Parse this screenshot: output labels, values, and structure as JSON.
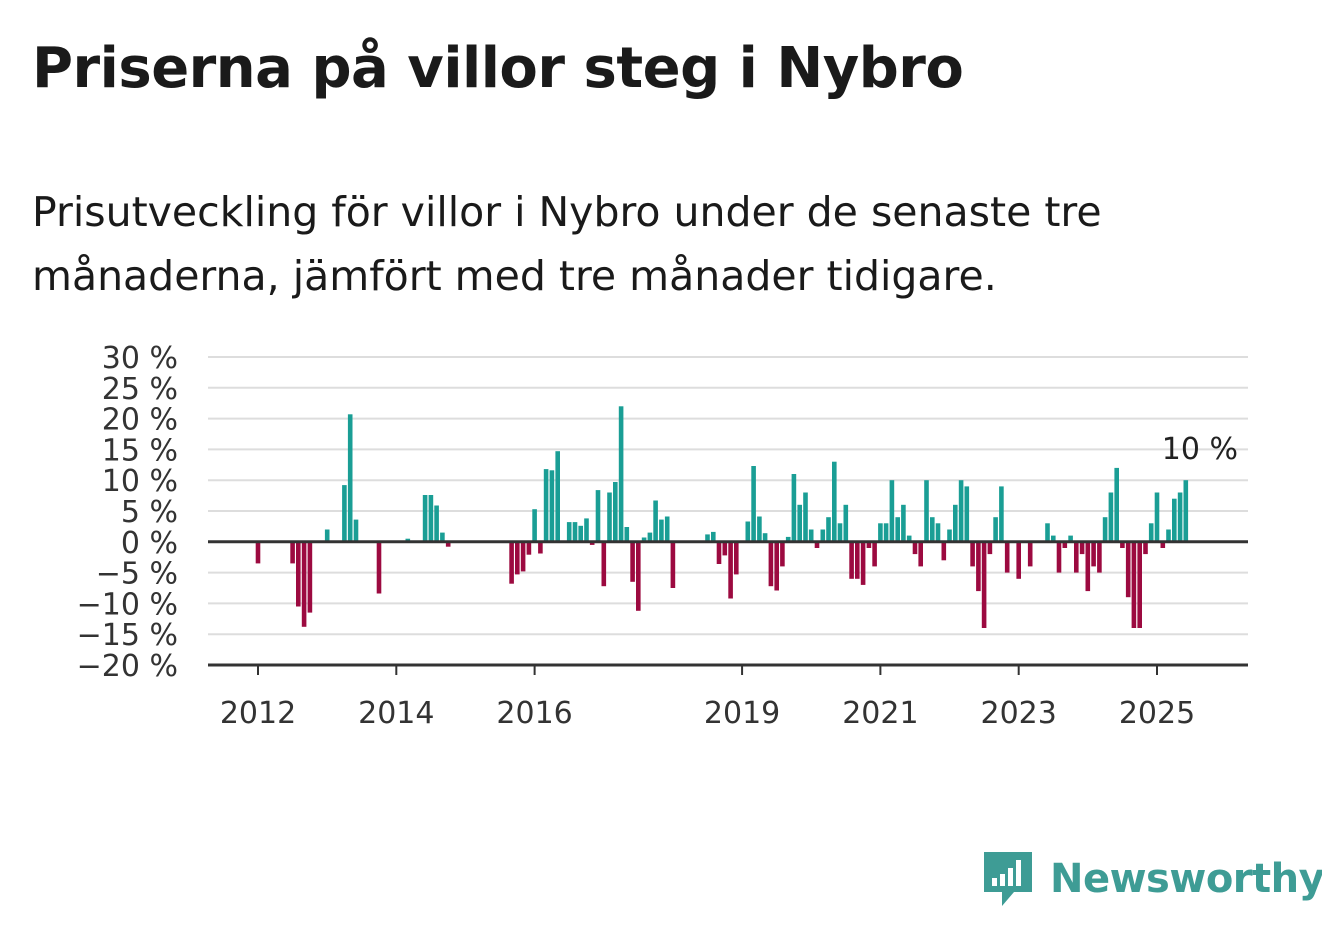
{
  "title": "Priserna på villor steg i Nybro",
  "subtitle": "Prisutveckling för villor i Nybro under de senaste tre månaderna, jämfört med tre månader tidigare.",
  "brand": {
    "name": "Newsworthy",
    "icon": "newsworthy-bar-chart-logo-icon"
  },
  "colors": {
    "positive": "#1a9e95",
    "negative": "#9c0a40",
    "grid": "#dddddd",
    "axis": "#333333",
    "text": "#333333"
  },
  "chart_data": {
    "type": "bar",
    "title": "Priserna på villor steg i Nybro",
    "subtitle": "Prisutveckling för villor i Nybro under de senaste tre månaderna, jämfört med tre månader tidigare.",
    "xlabel": "",
    "ylabel": "",
    "ylim": [
      -20,
      30
    ],
    "y_ticks": [
      30,
      25,
      20,
      15,
      10,
      5,
      0,
      -5,
      -10,
      -15,
      -20
    ],
    "y_tick_labels": [
      "30 %",
      "25 %",
      "20 %",
      "15 %",
      "10 %",
      "5 %",
      "0 %",
      "−5 %",
      "−10 %",
      "−15 %",
      "−20 %"
    ],
    "x_ticks": [
      {
        "label": "2012",
        "date": "2012-01"
      },
      {
        "label": "2014",
        "date": "2014-01"
      },
      {
        "label": "2016",
        "date": "2016-01"
      },
      {
        "label": "2019",
        "date": "2019-01"
      },
      {
        "label": "2021",
        "date": "2021-01"
      },
      {
        "label": "2023",
        "date": "2023-01"
      },
      {
        "label": "2025",
        "date": "2025-01"
      }
    ],
    "grid": true,
    "annotation": {
      "label": "10 %",
      "date": "2025-08",
      "value": 10
    },
    "series": [
      {
        "values": [
          {
            "date": "2012-01",
            "value": -3.5
          },
          {
            "date": "2012-07",
            "value": -3.5
          },
          {
            "date": "2012-08",
            "value": -10.5
          },
          {
            "date": "2012-09",
            "value": -13.8
          },
          {
            "date": "2012-10",
            "value": -11.5
          },
          {
            "date": "2013-01",
            "value": 2
          },
          {
            "date": "2013-04",
            "value": 9.2
          },
          {
            "date": "2013-05",
            "value": 20.7
          },
          {
            "date": "2013-06",
            "value": 3.6
          },
          {
            "date": "2013-10",
            "value": -8.4
          },
          {
            "date": "2014-03",
            "value": 0.5
          },
          {
            "date": "2014-06",
            "value": 7.6
          },
          {
            "date": "2014-07",
            "value": 7.6
          },
          {
            "date": "2014-08",
            "value": 5.9
          },
          {
            "date": "2014-09",
            "value": 1.5
          },
          {
            "date": "2014-10",
            "value": -0.8
          },
          {
            "date": "2015-09",
            "value": -6.8
          },
          {
            "date": "2015-10",
            "value": -5.3
          },
          {
            "date": "2015-11",
            "value": -4.8
          },
          {
            "date": "2015-12",
            "value": -2.1
          },
          {
            "date": "2016-01",
            "value": 5.3
          },
          {
            "date": "2016-02",
            "value": -1.9
          },
          {
            "date": "2016-03",
            "value": 11.8
          },
          {
            "date": "2016-04",
            "value": 11.6
          },
          {
            "date": "2016-05",
            "value": 14.7
          },
          {
            "date": "2016-07",
            "value": 3.2
          },
          {
            "date": "2016-08",
            "value": 3.2
          },
          {
            "date": "2016-09",
            "value": 2.6
          },
          {
            "date": "2016-10",
            "value": 3.8
          },
          {
            "date": "2016-11",
            "value": -0.5
          },
          {
            "date": "2016-12",
            "value": 8.4
          },
          {
            "date": "2017-01",
            "value": -7.2
          },
          {
            "date": "2017-02",
            "value": 8.0
          },
          {
            "date": "2017-03",
            "value": 9.7
          },
          {
            "date": "2017-04",
            "value": 22.0
          },
          {
            "date": "2017-05",
            "value": 2.4
          },
          {
            "date": "2017-06",
            "value": -6.5
          },
          {
            "date": "2017-07",
            "value": -11.2
          },
          {
            "date": "2017-08",
            "value": 0.7
          },
          {
            "date": "2017-09",
            "value": 1.5
          },
          {
            "date": "2017-10",
            "value": 6.7
          },
          {
            "date": "2017-11",
            "value": 3.6
          },
          {
            "date": "2017-12",
            "value": 4.1
          },
          {
            "date": "2018-01",
            "value": -7.5
          },
          {
            "date": "2018-07",
            "value": 1.2
          },
          {
            "date": "2018-08",
            "value": 1.6
          },
          {
            "date": "2018-09",
            "value": -3.6
          },
          {
            "date": "2018-10",
            "value": -2.2
          },
          {
            "date": "2018-11",
            "value": -9.2
          },
          {
            "date": "2018-12",
            "value": -5.3
          },
          {
            "date": "2019-02",
            "value": 3.3
          },
          {
            "date": "2019-03",
            "value": 12.3
          },
          {
            "date": "2019-04",
            "value": 4.1
          },
          {
            "date": "2019-05",
            "value": 1.4
          },
          {
            "date": "2019-06",
            "value": -7.2
          },
          {
            "date": "2019-07",
            "value": -7.9
          },
          {
            "date": "2019-08",
            "value": -4.0
          },
          {
            "date": "2019-09",
            "value": 0.8
          },
          {
            "date": "2019-10",
            "value": 11.0
          },
          {
            "date": "2019-11",
            "value": 6.0
          },
          {
            "date": "2019-12",
            "value": 8.0
          },
          {
            "date": "2020-01",
            "value": 2.0
          },
          {
            "date": "2020-02",
            "value": -1.0
          },
          {
            "date": "2020-03",
            "value": 2.0
          },
          {
            "date": "2020-04",
            "value": 4.0
          },
          {
            "date": "2020-05",
            "value": 13.0
          },
          {
            "date": "2020-06",
            "value": 3.0
          },
          {
            "date": "2020-07",
            "value": 6.0
          },
          {
            "date": "2020-08",
            "value": -6.0
          },
          {
            "date": "2020-09",
            "value": -6.0
          },
          {
            "date": "2020-10",
            "value": -7.0
          },
          {
            "date": "2020-11",
            "value": -1.0
          },
          {
            "date": "2020-12",
            "value": -4.0
          },
          {
            "date": "2021-01",
            "value": 3.0
          },
          {
            "date": "2021-02",
            "value": 3.0
          },
          {
            "date": "2021-03",
            "value": 10.0
          },
          {
            "date": "2021-04",
            "value": 4.0
          },
          {
            "date": "2021-05",
            "value": 6.0
          },
          {
            "date": "2021-06",
            "value": 1.0
          },
          {
            "date": "2021-07",
            "value": -2.0
          },
          {
            "date": "2021-08",
            "value": -4.0
          },
          {
            "date": "2021-09",
            "value": 10.0
          },
          {
            "date": "2021-10",
            "value": 4.0
          },
          {
            "date": "2021-11",
            "value": 3.0
          },
          {
            "date": "2021-12",
            "value": -3.0
          },
          {
            "date": "2022-01",
            "value": 2.0
          },
          {
            "date": "2022-02",
            "value": 6.0
          },
          {
            "date": "2022-03",
            "value": 10.0
          },
          {
            "date": "2022-04",
            "value": 9.0
          },
          {
            "date": "2022-05",
            "value": -4.0
          },
          {
            "date": "2022-06",
            "value": -8.0
          },
          {
            "date": "2022-07",
            "value": -14.0
          },
          {
            "date": "2022-08",
            "value": -2.0
          },
          {
            "date": "2022-09",
            "value": 4.0
          },
          {
            "date": "2022-10",
            "value": 9.0
          },
          {
            "date": "2022-11",
            "value": -5.0
          },
          {
            "date": "2023-01",
            "value": -6.0
          },
          {
            "date": "2023-03",
            "value": -4.0
          },
          {
            "date": "2023-06",
            "value": 3.0
          },
          {
            "date": "2023-07",
            "value": 1.0
          },
          {
            "date": "2023-08",
            "value": -5.0
          },
          {
            "date": "2023-09",
            "value": -1.0
          },
          {
            "date": "2023-10",
            "value": 1.0
          },
          {
            "date": "2023-11",
            "value": -5.0
          },
          {
            "date": "2023-12",
            "value": -2.0
          },
          {
            "date": "2024-01",
            "value": -8.0
          },
          {
            "date": "2024-02",
            "value": -4.0
          },
          {
            "date": "2024-03",
            "value": -5.0
          },
          {
            "date": "2024-04",
            "value": 4.0
          },
          {
            "date": "2024-05",
            "value": 8.0
          },
          {
            "date": "2024-06",
            "value": 12.0
          },
          {
            "date": "2024-07",
            "value": -1.0
          },
          {
            "date": "2024-08",
            "value": -9.0
          },
          {
            "date": "2024-09",
            "value": -14.0
          },
          {
            "date": "2024-10",
            "value": -14.0
          },
          {
            "date": "2024-11",
            "value": -2.0
          },
          {
            "date": "2024-12",
            "value": 3.0
          },
          {
            "date": "2025-01",
            "value": 8.0
          },
          {
            "date": "2025-02",
            "value": -1.0
          },
          {
            "date": "2025-03",
            "value": 2.0
          },
          {
            "date": "2025-04",
            "value": 7.0
          },
          {
            "date": "2025-05",
            "value": 8.0
          },
          {
            "date": "2025-06",
            "value": 10.0
          }
        ]
      }
    ]
  }
}
